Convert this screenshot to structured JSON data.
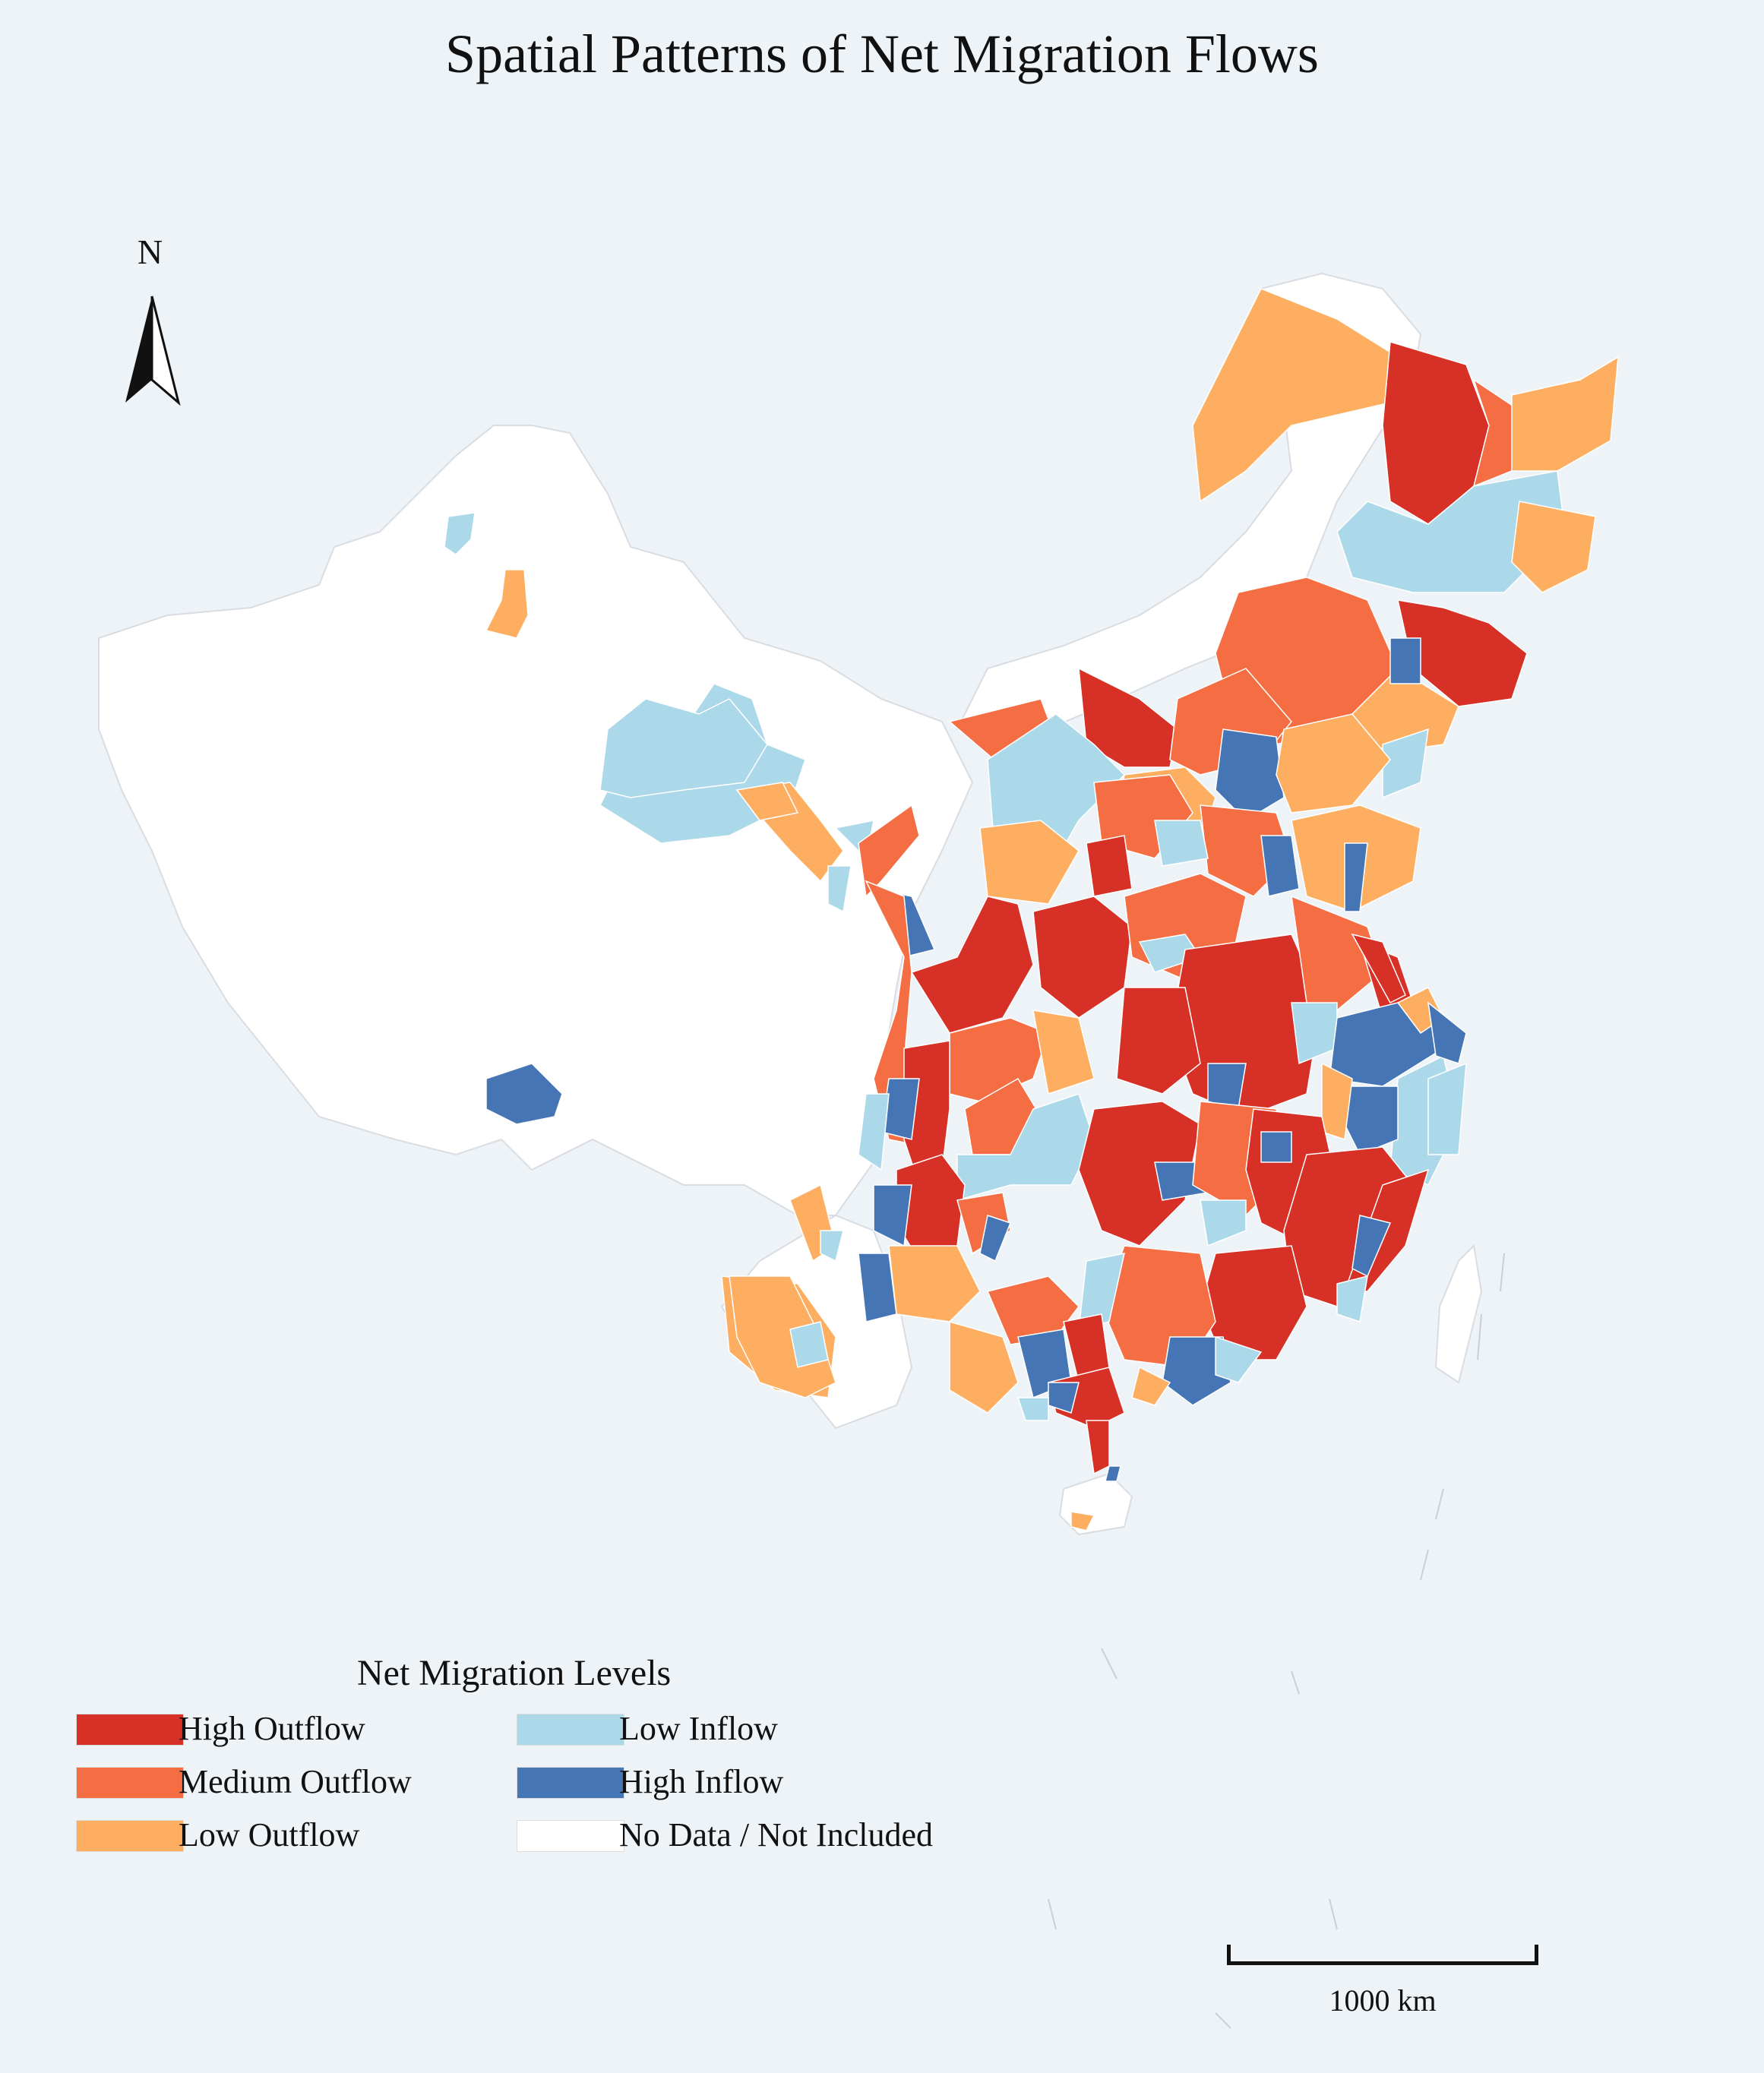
{
  "title": "Spatial Patterns of Net Migration Flows",
  "north_arrow": {
    "label": "N",
    "icon": "north-arrow-icon"
  },
  "legend": {
    "title": "Net Migration Levels",
    "items": [
      {
        "label": "High Outflow",
        "color": "#d73027"
      },
      {
        "label": "Medium Outflow",
        "color": "#f46d43"
      },
      {
        "label": "Low Outflow",
        "color": "#fdae61"
      },
      {
        "label": "Low Inflow",
        "color": "#abd9e9"
      },
      {
        "label": "High Inflow",
        "color": "#4575b4"
      },
      {
        "label": "No Data / Not Included",
        "color": "#ffffff"
      }
    ]
  },
  "scale_bar": {
    "label": "1000 km"
  },
  "colors": {
    "background": "#eef3f8",
    "no_data": "#ffffff",
    "boundary": "#d9dde2"
  }
}
